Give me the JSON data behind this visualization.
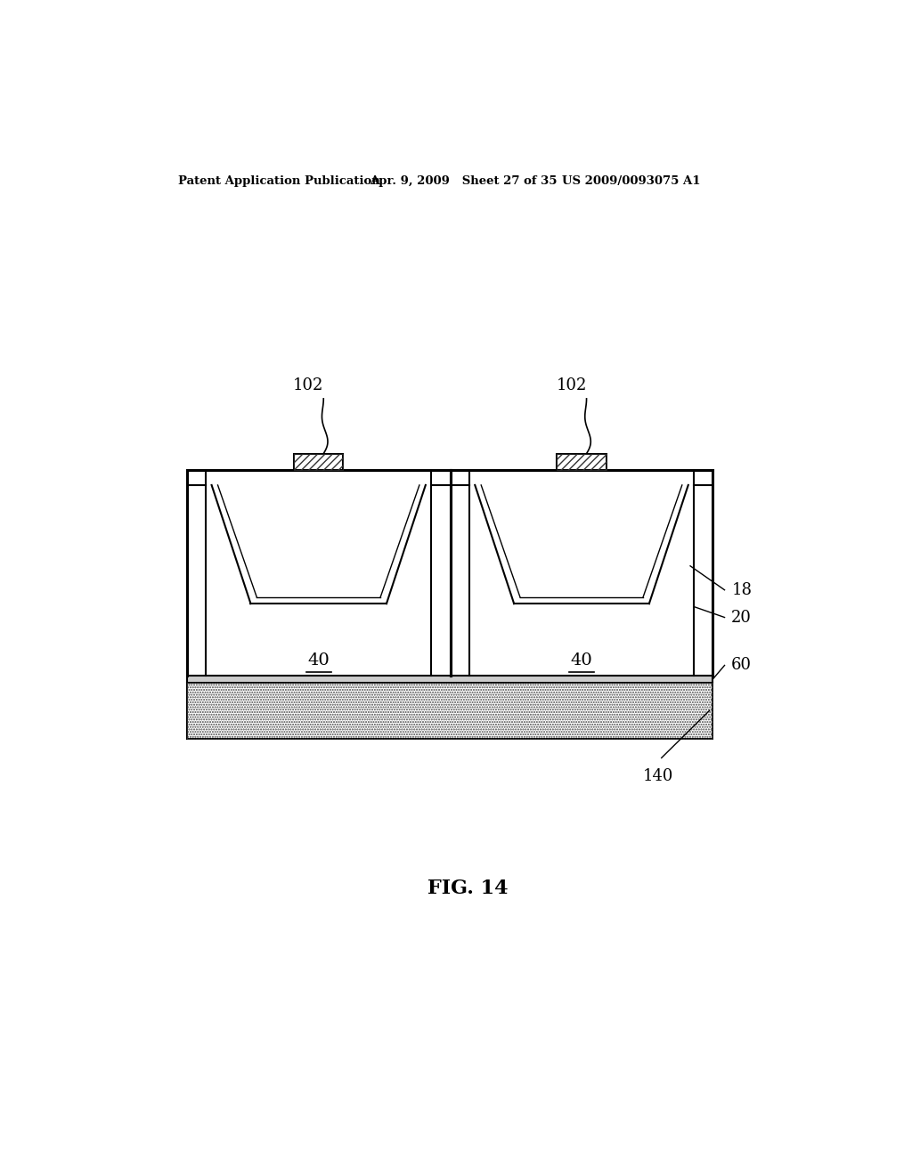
{
  "bg_color": "#ffffff",
  "header_left": "Patent Application Publication",
  "header_mid": "Apr. 9, 2009   Sheet 27 of 35",
  "header_right": "US 2009/0093075 A1",
  "fig_label": "FIG. 14",
  "line_color": "#000000",
  "lw_outer": 2.2,
  "lw_inner": 1.5,
  "lw_thin": 1.0
}
